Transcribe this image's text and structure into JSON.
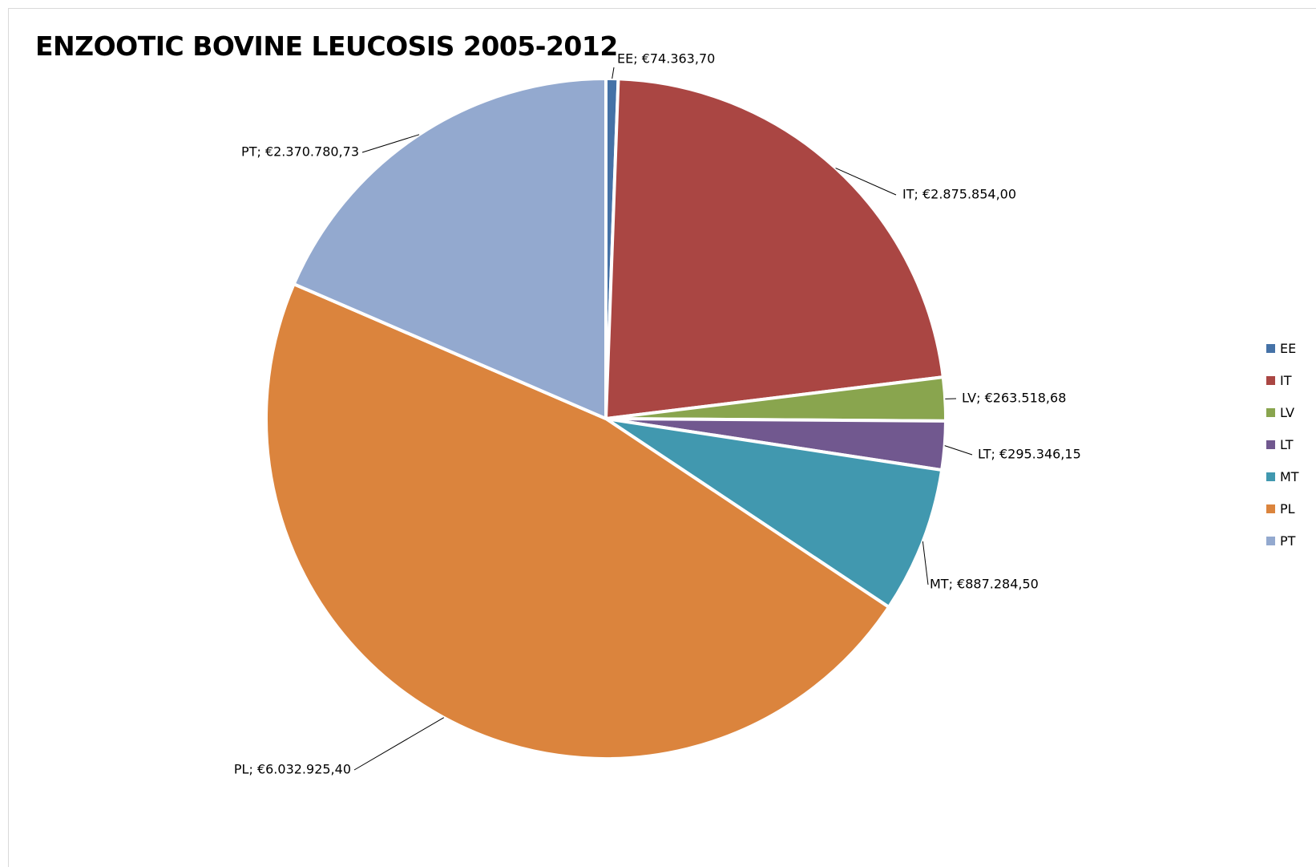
{
  "chart_data": {
    "type": "pie",
    "title": "ENZOOTIC BOVINE LEUCOSIS 2005-2012",
    "categories": [
      "EE",
      "IT",
      "LV",
      "LT",
      "MT",
      "PL",
      "PT"
    ],
    "values": [
      74363.7,
      2875854.0,
      263518.68,
      295346.15,
      887284.5,
      6032925.4,
      2370780.73
    ],
    "data_labels": [
      "EE; €74.363,70",
      "IT; €2.875.854,00",
      "LV; €263.518,68",
      "LT; €295.346,15",
      "MT; €887.284,50",
      "PL; €6.032.925,40",
      "PT; €2.370.780,73"
    ],
    "colors": [
      "#4572a7",
      "#aa4643",
      "#89a54e",
      "#71588f",
      "#4198af",
      "#db843d",
      "#93a9cf"
    ],
    "legend_position": "right"
  }
}
